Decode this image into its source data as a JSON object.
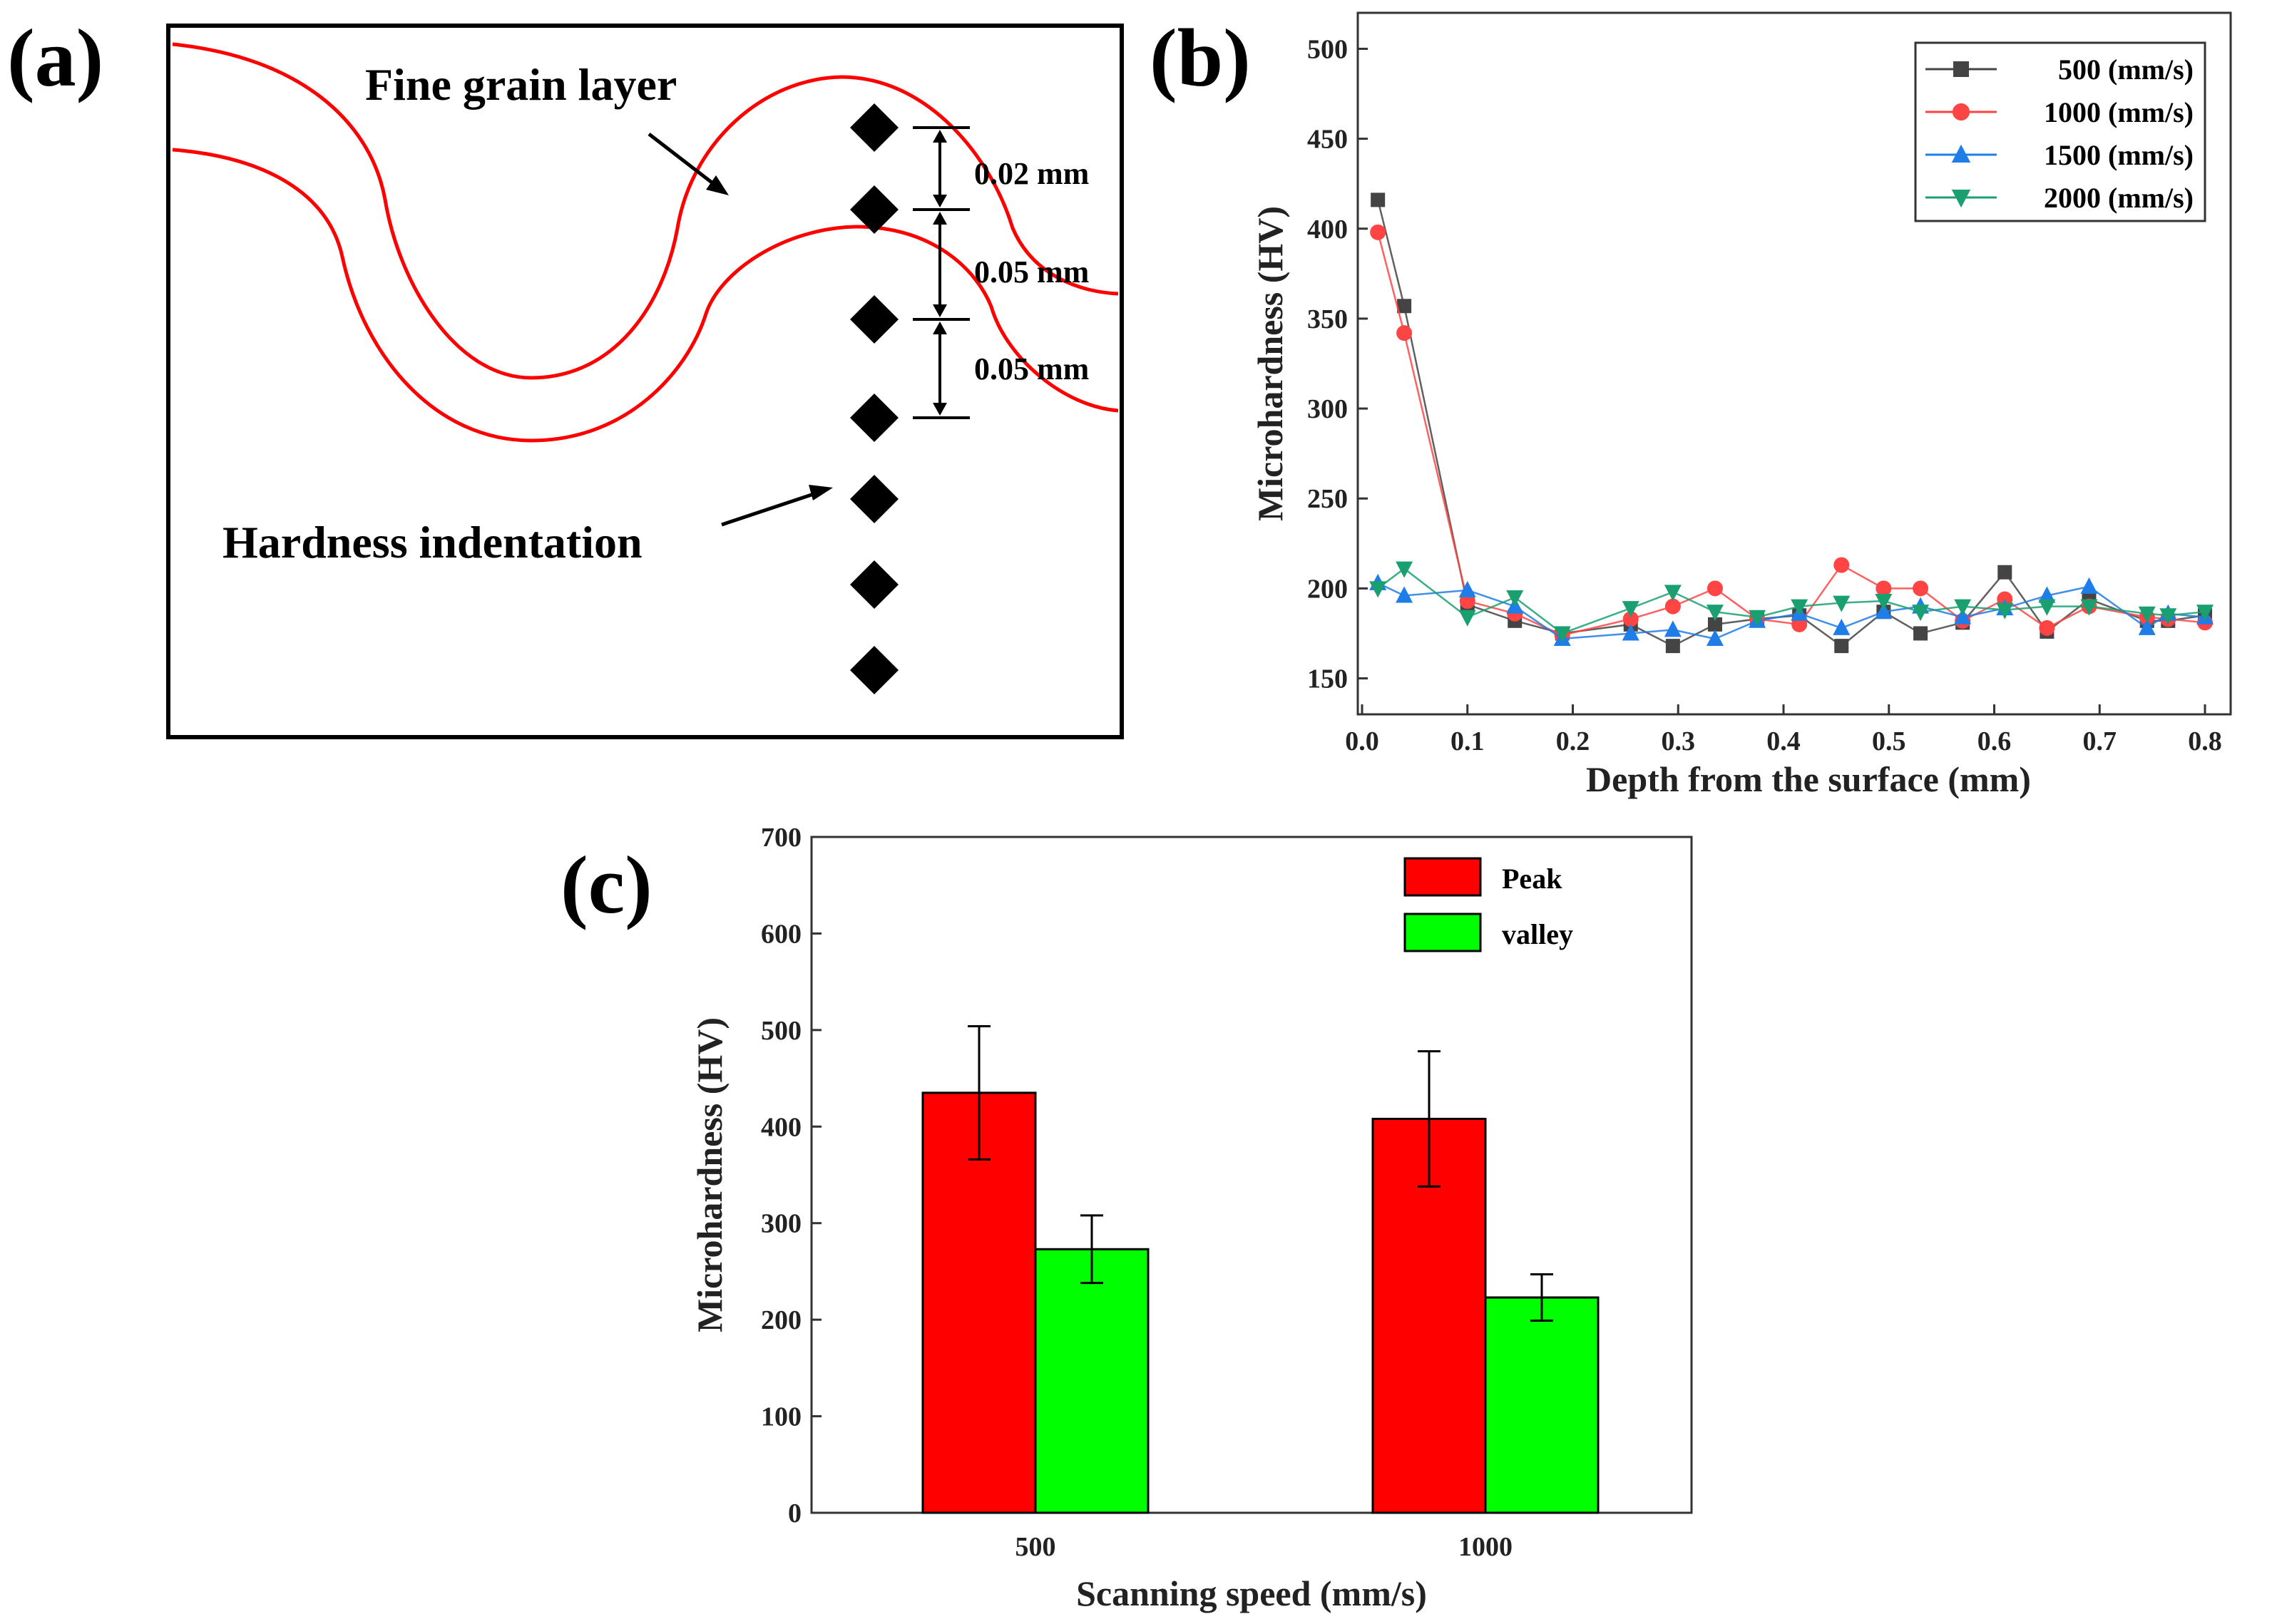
{
  "labels": {
    "a": "(a)",
    "b": "(b)",
    "c": "(c)"
  },
  "panel_a": {
    "fine_grain_label": "Fine grain layer",
    "hardness_label": "Hardness indentation",
    "spacing": [
      "0.02 mm",
      "0.05 mm",
      "0.05 mm"
    ],
    "colors": {
      "boundary": "#ff0000",
      "marker": "#000000"
    }
  },
  "chart_data": [
    {
      "type": "line",
      "panel": "b",
      "title": "",
      "xlabel": "Depth from the surface (mm)",
      "ylabel": "Microhardness (HV)",
      "xlim": [
        0.0,
        0.8
      ],
      "ylim": [
        130,
        520
      ],
      "xticks": [
        "0.0",
        "0.1",
        "0.2",
        "0.3",
        "0.4",
        "0.5",
        "0.6",
        "0.7",
        "0.8"
      ],
      "yticks": [
        "150",
        "200",
        "250",
        "300",
        "350",
        "400",
        "450",
        "500"
      ],
      "legend_position": "top-right",
      "series": [
        {
          "name": "500 (mm/s)",
          "marker": "square",
          "color": "#444444",
          "x": [
            0.015,
            0.04,
            0.1,
            0.145,
            0.19,
            0.255,
            0.295,
            0.335,
            0.375,
            0.415,
            0.455,
            0.495,
            0.53,
            0.57,
            0.61,
            0.65,
            0.69,
            0.745,
            0.765,
            0.8
          ],
          "y": [
            416,
            357,
            191,
            182,
            175,
            180,
            168,
            180,
            183,
            185,
            168,
            187,
            175,
            181,
            209,
            176,
            194,
            182,
            182,
            185
          ]
        },
        {
          "name": "1000 (mm/s)",
          "marker": "circle",
          "color": "#ff4444",
          "x": [
            0.015,
            0.04,
            0.1,
            0.145,
            0.19,
            0.255,
            0.295,
            0.335,
            0.375,
            0.415,
            0.455,
            0.495,
            0.53,
            0.57,
            0.61,
            0.65,
            0.69,
            0.745,
            0.765,
            0.8
          ],
          "y": [
            398,
            342,
            193,
            186,
            174,
            183,
            190,
            200,
            183,
            180,
            213,
            200,
            200,
            182,
            194,
            178,
            190,
            184,
            183,
            181
          ]
        },
        {
          "name": "1500 (mm/s)",
          "marker": "triangle-up",
          "color": "#1e7de6",
          "x": [
            0.015,
            0.04,
            0.1,
            0.145,
            0.19,
            0.255,
            0.295,
            0.335,
            0.375,
            0.415,
            0.455,
            0.495,
            0.53,
            0.57,
            0.61,
            0.65,
            0.69,
            0.745,
            0.765,
            0.8
          ],
          "y": [
            203,
            196,
            199,
            190,
            172,
            175,
            177,
            172,
            182,
            186,
            178,
            187,
            190,
            184,
            189,
            196,
            201,
            178,
            186,
            184
          ]
        },
        {
          "name": "2000 (mm/s)",
          "marker": "triangle-down",
          "color": "#1aa070",
          "x": [
            0.015,
            0.04,
            0.1,
            0.145,
            0.19,
            0.255,
            0.295,
            0.335,
            0.375,
            0.415,
            0.455,
            0.495,
            0.53,
            0.57,
            0.61,
            0.65,
            0.69,
            0.745,
            0.765,
            0.8
          ],
          "y": [
            200,
            211,
            184,
            195,
            175,
            189,
            198,
            187,
            184,
            190,
            192,
            193,
            187,
            190,
            188,
            190,
            190,
            186,
            185,
            187
          ]
        }
      ]
    },
    {
      "type": "bar",
      "panel": "c",
      "title": "",
      "xlabel": "Scanning speed (mm/s)",
      "ylabel": "Microhardness (HV)",
      "categories": [
        "500",
        "1000"
      ],
      "ylim": [
        0,
        700
      ],
      "yticks": [
        "0",
        "100",
        "200",
        "300",
        "400",
        "500",
        "600",
        "700"
      ],
      "legend_position": "top-right",
      "series": [
        {
          "name": "Peak",
          "color": "#ff0000",
          "values": [
            435,
            408
          ],
          "errors": [
            69,
            70
          ]
        },
        {
          "name": "valley",
          "color": "#00ff00",
          "values": [
            273,
            223
          ],
          "errors": [
            35,
            24
          ]
        }
      ]
    }
  ]
}
